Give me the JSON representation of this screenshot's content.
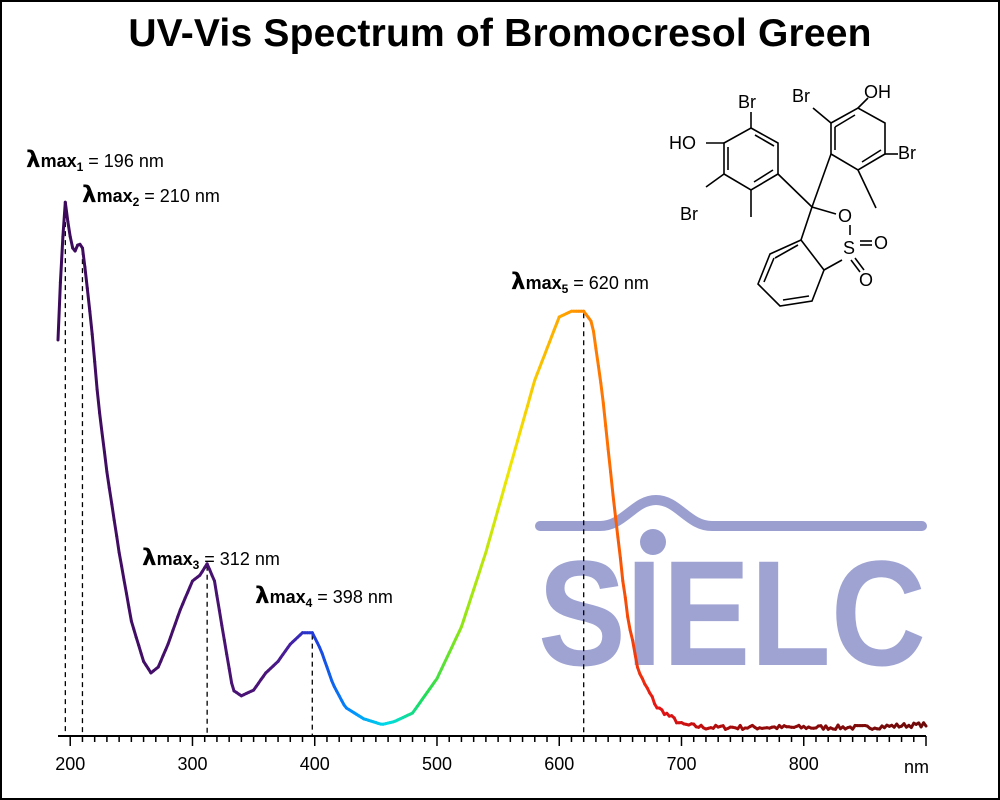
{
  "title": "UV-Vis Spectrum of Bromocresol Green",
  "watermark": {
    "text": "SIELC",
    "color": "#9a9fd0"
  },
  "molecule": {
    "labels": [
      "Br",
      "HO",
      "Br",
      "Br",
      "OH",
      "Br",
      "O",
      "S",
      "O",
      "O"
    ]
  },
  "chart_data": {
    "type": "line",
    "title": "UV-Vis Spectrum of Bromocresol Green",
    "xlabel": "nm",
    "ylabel": "",
    "xlim": [
      190,
      900
    ],
    "ylim": [
      0,
      1.0
    ],
    "x_ticks": [
      200,
      300,
      400,
      500,
      600,
      700,
      800
    ],
    "x_tick_labels": [
      "200",
      "300",
      "400",
      "500",
      "600",
      "700",
      "800"
    ],
    "minor_tick_step": 10,
    "grid": false,
    "line_colormap": "wavelength spectrum (violet to red)",
    "peaks": [
      {
        "sub": "1",
        "wavelength": 196,
        "value_text": "= 196 nm"
      },
      {
        "sub": "2",
        "wavelength": 210,
        "value_text": "= 210 nm"
      },
      {
        "sub": "3",
        "wavelength": 312,
        "value_text": "= 312 nm"
      },
      {
        "sub": "4",
        "wavelength": 398,
        "value_text": "= 398 nm"
      },
      {
        "sub": "5",
        "wavelength": 620,
        "value_text": "= 620 nm"
      }
    ],
    "series": [
      {
        "x": [
          190,
          193,
          196,
          199,
          203,
          207,
          210,
          213,
          218,
          223,
          230,
          240,
          250,
          260,
          266,
          272,
          280,
          290,
          300,
          306,
          312,
          318,
          325,
          333,
          340,
          350,
          360,
          370,
          380,
          390,
          398,
          405,
          415,
          425,
          440,
          455,
          465,
          480,
          500,
          520,
          540,
          560,
          580,
          600,
          610,
          620,
          627,
          635,
          645,
          655,
          665,
          680,
          700,
          720,
          760,
          800,
          850,
          900
        ],
        "y": [
          0.69,
          0.84,
          0.93,
          0.88,
          0.84,
          0.86,
          0.85,
          0.8,
          0.7,
          0.58,
          0.46,
          0.32,
          0.2,
          0.13,
          0.11,
          0.12,
          0.16,
          0.22,
          0.27,
          0.28,
          0.3,
          0.27,
          0.18,
          0.08,
          0.07,
          0.08,
          0.11,
          0.13,
          0.16,
          0.18,
          0.18,
          0.15,
          0.09,
          0.05,
          0.03,
          0.02,
          0.025,
          0.04,
          0.1,
          0.19,
          0.32,
          0.47,
          0.62,
          0.73,
          0.74,
          0.74,
          0.72,
          0.6,
          0.4,
          0.22,
          0.11,
          0.05,
          0.02,
          0.015,
          0.015,
          0.015,
          0.015,
          0.02
        ]
      }
    ]
  }
}
